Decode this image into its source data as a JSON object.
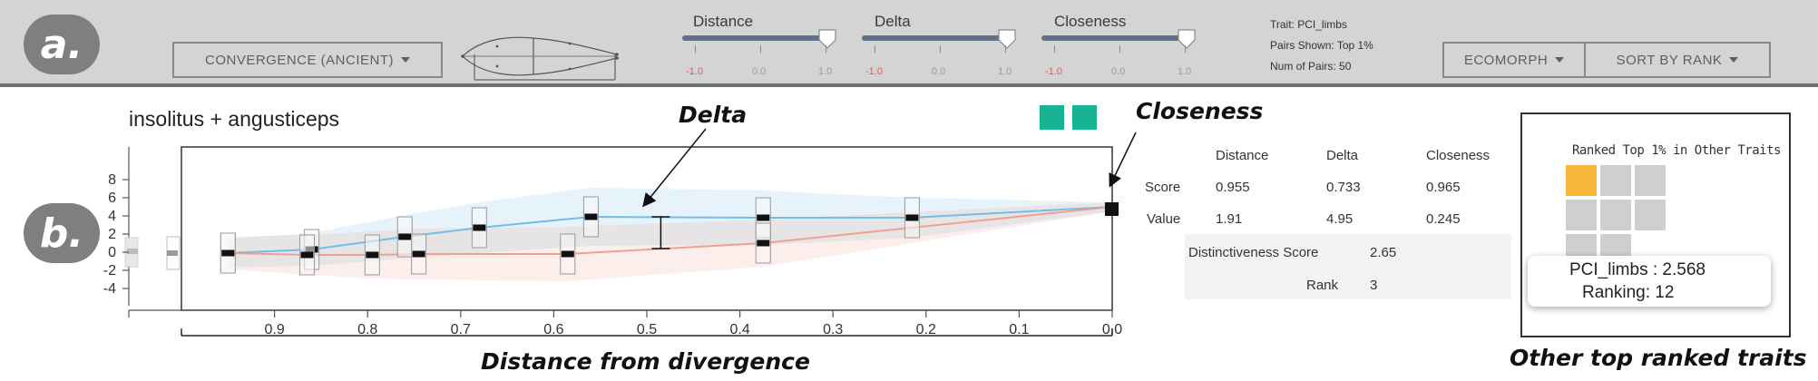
{
  "badges": {
    "a": "a.",
    "b": "b."
  },
  "toolbar": {
    "convergence_label": "CONVERGENCE (ANCIENT)",
    "ecomorph_label": "ECOMORPH",
    "sort_label": "SORT BY RANK",
    "sliders": [
      {
        "label": "Distance",
        "min": "-1.0",
        "mid": "0.0",
        "max": "1.0",
        "value": 1.0
      },
      {
        "label": "Delta",
        "min": "-1.0",
        "mid": "0.0",
        "max": "1.0",
        "value": 1.0
      },
      {
        "label": "Closeness",
        "min": "-1.0",
        "mid": "0.0",
        "max": "1.0",
        "value": 1.0
      }
    ],
    "info": {
      "trait": "Trait: PCI_limbs",
      "pairs_shown": "Pairs Shown: Top 1%",
      "num_pairs": "Num of Pairs: 50"
    }
  },
  "chart_title": "insolitus + angusticeps",
  "annotations": {
    "delta": "Delta",
    "closeness": "Closeness",
    "distance_axis": "Distance from divergence",
    "other_traits": "Other top ranked traits"
  },
  "colors": {
    "blue_series": "#74bde8",
    "red_series": "#f0a08c",
    "teal_swatch": "#17b393",
    "highlight": "#f7b73a"
  },
  "chart_data": {
    "type": "line",
    "title": "insolitus + angusticeps",
    "xlabel": "Distance from divergence",
    "ylabel": "",
    "x_reversed": true,
    "xlim": [
      1.0,
      0.0
    ],
    "ylim": [
      -5,
      9
    ],
    "x_ticks": [
      "0.9",
      "0.8",
      "0.7",
      "0.6",
      "0.5",
      "0.4",
      "0.3",
      "0.2",
      "0.1",
      "0.0"
    ],
    "x_tick_values": [
      0.9,
      0.8,
      0.7,
      0.6,
      0.5,
      0.4,
      0.3,
      0.2,
      0.1,
      0.0
    ],
    "y_ticks": [
      "8",
      "6",
      "4",
      "2",
      "0",
      "-2",
      "-4"
    ],
    "y_tick_values": [
      8,
      6,
      4,
      2,
      0,
      -2,
      -4
    ],
    "series": [
      {
        "color": "#74bde8",
        "x": [
          0.95,
          0.86,
          0.76,
          0.68,
          0.56,
          0.375,
          0.215,
          0.0
        ],
        "y": [
          -0.1,
          0.3,
          1.7,
          2.7,
          3.9,
          3.8,
          3.8,
          5.0
        ]
      },
      {
        "color": "#f0a08c",
        "x": [
          0.95,
          0.865,
          0.795,
          0.745,
          0.585,
          0.375,
          0.0
        ],
        "y": [
          -0.1,
          -0.3,
          -0.3,
          -0.2,
          -0.2,
          1.0,
          5.0
        ]
      }
    ],
    "ancestor_marker": {
      "x": 0.0,
      "y": 4.8
    },
    "delta_bar": {
      "x": 0.485,
      "y_top": 3.9,
      "y_bottom": 0.4
    }
  },
  "score_table": {
    "headers": [
      "Distance",
      "Delta",
      "Closeness"
    ],
    "rows": [
      {
        "label": "Score",
        "values": [
          "0.955",
          "0.733",
          "0.965"
        ]
      },
      {
        "label": "Value",
        "values": [
          "1.91",
          "4.95",
          "0.245"
        ]
      }
    ],
    "distinctiveness_label": "Distinctiveness Score",
    "distinctiveness_value": "2.65",
    "rank_label": "Rank",
    "rank_value": "3"
  },
  "ranked_panel": {
    "title": "Ranked Top 1% in Other Traits",
    "tooltip_line1": "PCI_limbs : 2.568",
    "tooltip_line2": "Ranking: 12"
  }
}
